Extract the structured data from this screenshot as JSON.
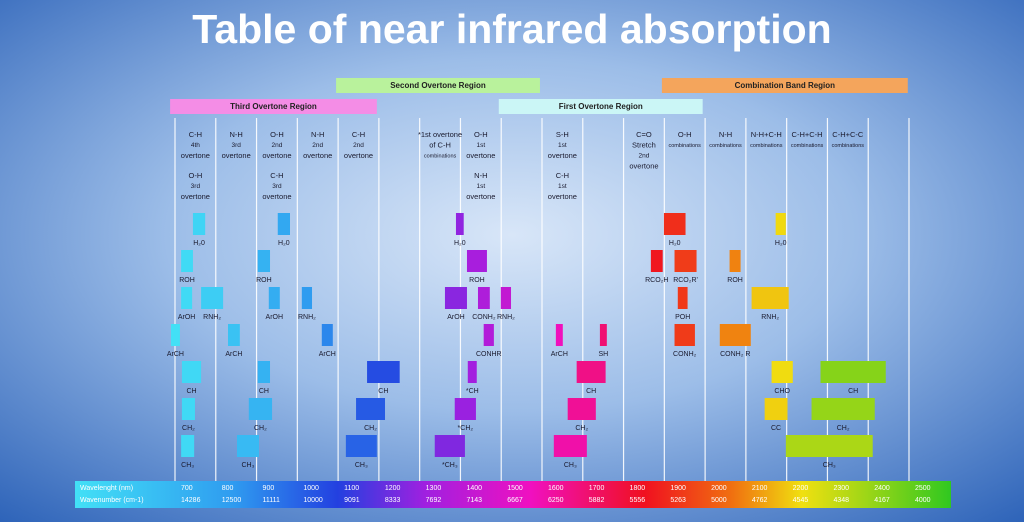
{
  "chart_data": {
    "type": "band",
    "title": "Table of near infrared absorption",
    "xlim": [
      700,
      2500
    ],
    "x_label": "Wavelenght (nm)",
    "x2_label": "Wavenumber (cm-1)",
    "xticks": [
      700,
      800,
      900,
      1000,
      1100,
      1200,
      1300,
      1400,
      1500,
      1600,
      1700,
      1800,
      1900,
      2000,
      2100,
      2200,
      2300,
      2400,
      2500
    ],
    "x2ticks": [
      14286,
      12500,
      11111,
      10000,
      9091,
      8333,
      7692,
      7143,
      6667,
      6250,
      5882,
      5556,
      5263,
      5000,
      4762,
      4545,
      4348,
      4167,
      4000
    ],
    "regions": [
      {
        "label": "Third Overtone Region",
        "color": "#f48de6",
        "range": [
          688,
          1195
        ]
      },
      {
        "label": "Second Overtone Region",
        "color": "#b9f29c",
        "range": [
          1095,
          1595
        ]
      },
      {
        "label": "First Overtone Region",
        "color": "#cbf6f6",
        "range": [
          1494,
          1994
        ]
      },
      {
        "label": "Combination Band Region",
        "color": "#f4a55c",
        "range": [
          1894,
          2497
        ]
      }
    ],
    "headers": [
      [
        [
          "C-H",
          "4th",
          "overtone"
        ],
        [
          "O-H",
          "3rd",
          "overtone"
        ]
      ],
      [
        [
          "N-H",
          "3rd",
          "overtone"
        ]
      ],
      [
        [
          "O-H",
          "2nd",
          "overtone"
        ],
        [
          "C-H",
          "3rd",
          "overtone"
        ]
      ],
      [
        [
          "N-H",
          "2nd",
          "overtone"
        ]
      ],
      [
        [
          "C-H",
          "2nd",
          "overtone"
        ]
      ],
      [
        [
          "*1st overtone",
          "of C-H",
          "combinations"
        ]
      ],
      [
        [
          "O-H",
          "1st",
          "overtone"
        ],
        [
          "N-H",
          "1st",
          "overtone"
        ]
      ],
      [
        [
          "S-H",
          "1st",
          "overtone"
        ],
        [
          "C-H",
          "1st",
          "overtone"
        ]
      ],
      [
        [
          "C=O",
          "Stretch",
          "2nd",
          "overtone"
        ]
      ],
      [
        [
          "O-H",
          "combinations"
        ]
      ],
      [
        [
          "N-H",
          "combinations"
        ]
      ],
      [
        [
          "N-H+C-H",
          "combinations"
        ]
      ],
      [
        [
          "C-H+C-H",
          "combinations"
        ]
      ],
      [
        [
          "C-H+C-C",
          "combinations"
        ]
      ]
    ],
    "rows": [
      [
        {
          "label": "H₂0",
          "range": [
            744,
            774
          ]
        },
        {
          "label": "H₂0",
          "range": [
            952,
            982
          ]
        },
        {
          "label": "H₂0",
          "range": [
            1389,
            1408
          ]
        },
        {
          "label": "H₂0",
          "range": [
            1899,
            1952
          ]
        },
        {
          "label": "H₂0",
          "range": [
            2173,
            2198
          ]
        }
      ],
      [
        {
          "label": "ROH",
          "range": [
            715,
            744
          ]
        },
        {
          "label": "ROH",
          "range": [
            903,
            933
          ]
        },
        {
          "label": "ROH",
          "range": [
            1416,
            1465
          ]
        },
        {
          "label": "RCO₂H",
          "range": [
            1867,
            1896
          ]
        },
        {
          "label": "RCO₂R'",
          "range": [
            1925,
            1979
          ]
        },
        {
          "label": "ROH",
          "range": [
            2060,
            2087
          ]
        }
      ],
      [
        {
          "label": "ArOH",
          "range": [
            715,
            742
          ]
        },
        {
          "label": "RNH₂",
          "range": [
            764,
            818
          ]
        },
        {
          "label": "ArOH",
          "range": [
            930,
            957
          ]
        },
        {
          "label": "RNH₂",
          "range": [
            1011,
            1036
          ]
        },
        {
          "label": "ArOH",
          "range": [
            1362,
            1416
          ]
        },
        {
          "label": "CONH₂",
          "range": [
            1443,
            1472
          ]
        },
        {
          "label": "RNH₂",
          "range": [
            1499,
            1524
          ]
        },
        {
          "label": "POH",
          "range": [
            1933,
            1957
          ]
        },
        {
          "label": "RNH₂",
          "range": [
            2114,
            2205
          ]
        }
      ],
      [
        {
          "label": "ArCH",
          "range": [
            690,
            712
          ]
        },
        {
          "label": "ArCH",
          "range": [
            830,
            859
          ]
        },
        {
          "label": "ArCH",
          "range": [
            1060,
            1087
          ]
        },
        {
          "label": "CONHR",
          "range": [
            1457,
            1482
          ]
        },
        {
          "label": "ArCH",
          "range": [
            1634,
            1651
          ]
        },
        {
          "label": "SH",
          "range": [
            1742,
            1759
          ]
        },
        {
          "label": "CONH₂",
          "range": [
            1925,
            1975
          ]
        },
        {
          "label": "CONH₂ R",
          "range": [
            2036,
            2112
          ]
        }
      ],
      [
        {
          "label": "CH",
          "range": [
            717,
            764
          ]
        },
        {
          "label": "CH",
          "range": [
            903,
            933
          ]
        },
        {
          "label": "CH",
          "range": [
            1171,
            1251
          ]
        },
        {
          "label": "*CH",
          "range": [
            1418,
            1440
          ]
        },
        {
          "label": "CH",
          "range": [
            1685,
            1756
          ]
        },
        {
          "label": "CHO",
          "range": [
            2163,
            2215
          ]
        },
        {
          "label": "CH",
          "range": [
            2283,
            2443
          ]
        }
      ],
      [
        {
          "label": "CH₂",
          "range": [
            717,
            749
          ]
        },
        {
          "label": "CH₂",
          "range": [
            881,
            938
          ]
        },
        {
          "label": "CH₂",
          "range": [
            1144,
            1215
          ]
        },
        {
          "label": "*CH₂",
          "range": [
            1386,
            1438
          ]
        },
        {
          "label": "CH₂",
          "range": [
            1663,
            1732
          ]
        },
        {
          "label": "CC",
          "range": [
            2146,
            2202
          ]
        },
        {
          "label": "CH₂",
          "range": [
            2261,
            2416
          ]
        }
      ],
      [
        {
          "label": "CH₃",
          "range": [
            715,
            747
          ]
        },
        {
          "label": "CH₃",
          "range": [
            852,
            906
          ]
        },
        {
          "label": "CH₃",
          "range": [
            1119,
            1195
          ]
        },
        {
          "label": "*CH₃",
          "range": [
            1337,
            1411
          ]
        },
        {
          "label": "CH₃",
          "range": [
            1629,
            1710
          ]
        },
        {
          "label": "CH₃",
          "range": [
            2198,
            2411
          ]
        }
      ]
    ]
  }
}
